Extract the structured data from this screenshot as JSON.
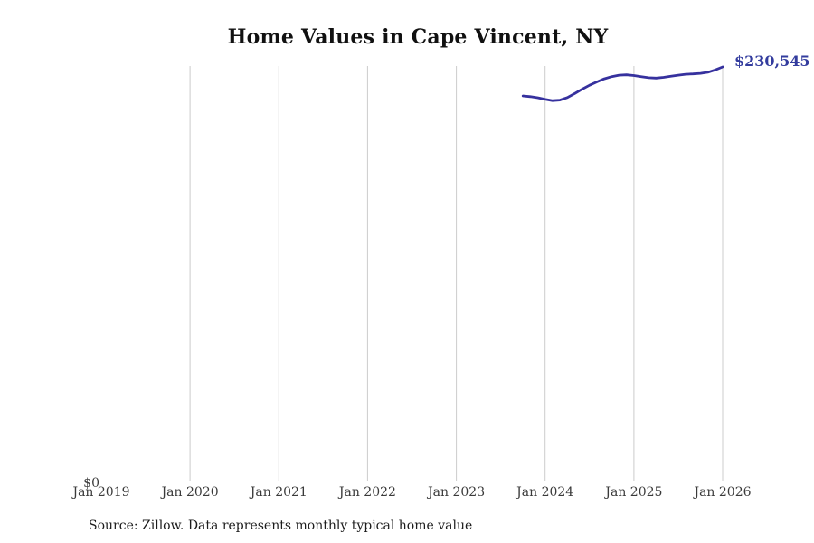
{
  "chart_data": {
    "type": "line",
    "title": "Home Values in Cape Vincent, NY",
    "source_note": "Source: Zillow. Data represents monthly typical home value",
    "end_label": "$230,545",
    "latest_value": 230545,
    "y_axis": {
      "tick_labels": [
        "$0"
      ],
      "min": 0,
      "max": 230545,
      "grid": false
    },
    "x_axis": {
      "tick_labels": [
        "Jan 2019",
        "Jan 2020",
        "Jan 2021",
        "Jan 2022",
        "Jan 2023",
        "Jan 2024",
        "Jan 2025",
        "Jan 2026"
      ],
      "gridlines_at": [
        "Jan 2020",
        "Jan 2021",
        "Jan 2022",
        "Jan 2023",
        "Jan 2024",
        "Jan 2025",
        "Jan 2026"
      ],
      "grid": true
    },
    "legend": "none",
    "series": [
      {
        "name": "Monthly typical home value",
        "points": [
          {
            "date": "Oct 2023",
            "value": 214500
          },
          {
            "date": "Nov 2023",
            "value": 214100
          },
          {
            "date": "Dec 2023",
            "value": 213500
          },
          {
            "date": "Jan 2024",
            "value": 212600
          },
          {
            "date": "Feb 2024",
            "value": 211900
          },
          {
            "date": "Mar 2024",
            "value": 212200
          },
          {
            "date": "Apr 2024",
            "value": 213600
          },
          {
            "date": "May 2024",
            "value": 215800
          },
          {
            "date": "Jun 2024",
            "value": 218200
          },
          {
            "date": "Jul 2024",
            "value": 220400
          },
          {
            "date": "Aug 2024",
            "value": 222300
          },
          {
            "date": "Sep 2024",
            "value": 224000
          },
          {
            "date": "Oct 2024",
            "value": 225200
          },
          {
            "date": "Nov 2024",
            "value": 226000
          },
          {
            "date": "Dec 2024",
            "value": 226200
          },
          {
            "date": "Jan 2025",
            "value": 225800
          },
          {
            "date": "Feb 2025",
            "value": 225200
          },
          {
            "date": "Mar 2025",
            "value": 224600
          },
          {
            "date": "Apr 2025",
            "value": 224400
          },
          {
            "date": "May 2025",
            "value": 224800
          },
          {
            "date": "Jun 2025",
            "value": 225400
          },
          {
            "date": "Jul 2025",
            "value": 226000
          },
          {
            "date": "Aug 2025",
            "value": 226500
          },
          {
            "date": "Sep 2025",
            "value": 226700
          },
          {
            "date": "Oct 2025",
            "value": 227000
          },
          {
            "date": "Nov 2025",
            "value": 227600
          },
          {
            "date": "Dec 2025",
            "value": 228900
          },
          {
            "date": "Jan 2026",
            "value": 230545
          }
        ]
      }
    ],
    "colors": {
      "line": "#36319e",
      "end_label": "#333c9e",
      "gridline": "#cccccc",
      "axis_text": "#3a3a3a",
      "title": "#111111",
      "source": "#1c1c1c",
      "background": "#ffffff"
    }
  }
}
